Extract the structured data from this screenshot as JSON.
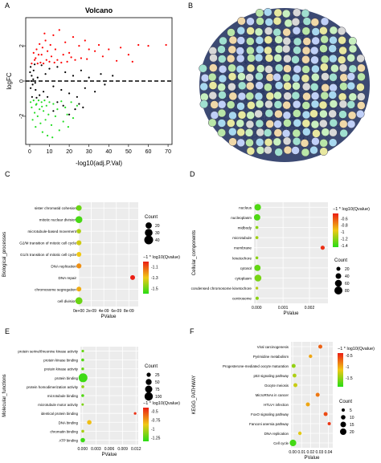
{
  "panels": {
    "a": "A",
    "b": "B",
    "c": "C",
    "d": "D",
    "e": "E",
    "f": "F"
  },
  "colors": {
    "up": "#ff0000",
    "down": "#22dd22",
    "ns": "#000000",
    "network_edge": "#1a2a5a"
  },
  "chart_data": [
    {
      "id": "A",
      "type": "scatter",
      "title": "Volcano",
      "xlabel": "-log10(adj.P.Val)",
      "ylabel": "logFC",
      "xlim": [
        -2,
        72
      ],
      "ylim": [
        -3.6,
        3.6
      ],
      "xticks": [
        0,
        10,
        20,
        30,
        40,
        50,
        60,
        70
      ],
      "yticks": [
        -2,
        0,
        2
      ],
      "series": [
        {
          "color": "up",
          "points": [
            [
              69,
              2.05
            ],
            [
              60,
              2.0
            ],
            [
              55,
              2.05
            ],
            [
              46,
              1.9
            ],
            [
              40,
              1.8
            ],
            [
              35,
              2.05
            ],
            [
              33,
              1.7
            ],
            [
              30,
              1.8
            ],
            [
              28,
              2.3
            ],
            [
              25,
              2.0
            ],
            [
              22,
              2.5
            ],
            [
              20,
              1.6
            ],
            [
              18,
              2.2
            ],
            [
              17,
              1.5
            ],
            [
              15,
              2.9
            ],
            [
              14,
              1.2
            ],
            [
              13,
              1.8
            ],
            [
              12,
              2.6
            ],
            [
              10,
              1.1
            ],
            [
              9,
              1.7
            ],
            [
              8,
              2.3
            ],
            [
              7,
              1.0
            ],
            [
              6,
              1.5
            ],
            [
              5,
              2.1
            ],
            [
              4,
              1.0
            ],
            [
              3,
              1.3
            ],
            [
              2,
              1.6
            ],
            [
              1,
              1.0
            ],
            [
              26,
              1.3
            ],
            [
              19,
              1.1
            ],
            [
              11,
              1.4
            ],
            [
              16,
              1.05
            ],
            [
              23,
              1.2
            ],
            [
              8.5,
              1.2
            ],
            [
              6.5,
              1.9
            ],
            [
              4.5,
              1.5
            ],
            [
              2.5,
              1.2
            ],
            [
              3.5,
              1.8
            ],
            [
              5.5,
              1.05
            ],
            [
              12.5,
              1.05
            ],
            [
              21,
              1.35
            ],
            [
              29,
              1.25
            ],
            [
              37,
              1.4
            ],
            [
              44,
              1.15
            ],
            [
              50,
              1.5
            ],
            [
              52,
              1.1
            ],
            [
              7.5,
              2.7
            ],
            [
              10.5,
              2.05
            ]
          ]
        },
        {
          "color": "ns",
          "points": [
            [
              0.2,
              0.5
            ],
            [
              0.5,
              -0.4
            ],
            [
              1,
              0.3
            ],
            [
              1.5,
              -0.2
            ],
            [
              2,
              0.6
            ],
            [
              3,
              -0.5
            ],
            [
              4,
              0.2
            ],
            [
              5,
              -0.8
            ],
            [
              6,
              0.9
            ],
            [
              7,
              -0.6
            ],
            [
              8,
              0.4
            ],
            [
              9,
              -0.9
            ],
            [
              10,
              0.7
            ],
            [
              12,
              -0.3
            ],
            [
              14,
              0.8
            ],
            [
              16,
              -0.5
            ],
            [
              18,
              0.5
            ],
            [
              20,
              -0.7
            ],
            [
              22,
              0.3
            ],
            [
              24,
              -0.9
            ],
            [
              26,
              0.6
            ],
            [
              28,
              -0.4
            ],
            [
              30,
              0.2
            ],
            [
              33,
              -0.6
            ],
            [
              36,
              0.4
            ],
            [
              38,
              -0.2
            ],
            [
              42,
              0.3
            ],
            [
              25,
              -1.3
            ],
            [
              23,
              -1.6
            ],
            [
              20,
              -1.9
            ],
            [
              17,
              -1.4
            ],
            [
              14,
              -1.2
            ],
            [
              12,
              -1.7
            ],
            [
              27,
              -1.5
            ],
            [
              0.5,
              0.8
            ],
            [
              1.2,
              -0.9
            ],
            [
              2.5,
              0.95
            ],
            [
              3.5,
              -0.95
            ],
            [
              0.8,
              0.0
            ],
            [
              1.8,
              0.1
            ],
            [
              2.8,
              -0.1
            ]
          ]
        },
        {
          "color": "down",
          "points": [
            [
              0.5,
              -1.2
            ],
            [
              1,
              -1.5
            ],
            [
              1.5,
              -2.2
            ],
            [
              2,
              -1.1
            ],
            [
              2.5,
              -1.8
            ],
            [
              3,
              -2.6
            ],
            [
              3.5,
              -1.3
            ],
            [
              4,
              -2.0
            ],
            [
              4.5,
              -1.1
            ],
            [
              5,
              -1.6
            ],
            [
              5.5,
              -2.4
            ],
            [
              6,
              -1.2
            ],
            [
              6.5,
              -2.9
            ],
            [
              7,
              -1.7
            ],
            [
              7.5,
              -1.1
            ],
            [
              8,
              -2.2
            ],
            [
              8.5,
              -1.4
            ],
            [
              9,
              -3.1
            ],
            [
              9.5,
              -1.9
            ],
            [
              10,
              -1.2
            ],
            [
              11,
              -2.5
            ],
            [
              12,
              -1.3
            ],
            [
              13,
              -2.0
            ],
            [
              14,
              -1.6
            ],
            [
              15,
              -2.8
            ],
            [
              16,
              -1.15
            ],
            [
              17,
              -2.3
            ],
            [
              18,
              -1.5
            ],
            [
              19,
              -1.9
            ],
            [
              21,
              -1.2
            ],
            [
              22,
              -2.1
            ],
            [
              24,
              -1.4
            ],
            [
              19.5,
              -2.6
            ],
            [
              11.5,
              -3.2
            ],
            [
              6.2,
              -1.45
            ],
            [
              3.2,
              -1.35
            ]
          ]
        }
      ]
    },
    {
      "id": "C",
      "type": "scatter",
      "xlabel": "PValue",
      "ylabel": "Biological_processes",
      "xlim": [
        0,
        9.5e-09
      ],
      "xticks": [
        0,
        2e-09,
        4e-09,
        6e-09,
        8e-09
      ],
      "xticklabels": [
        "0e+00",
        "2e-09",
        "4e-09",
        "6e-09",
        "8e-09"
      ],
      "categories": [
        "sister chromatid cohesion",
        "mitotic nuclear division",
        "microtubule-based movement",
        "G2/M transition of mitotic cell cycle",
        "G1/S transition of mitotic cell cycle",
        "DNA replication",
        "DNA repair",
        "chromosome segregation",
        "cell division"
      ],
      "points": [
        {
          "category": "sister chromatid cohesion",
          "x": 1e-11,
          "count": 16,
          "q": -1.5
        },
        {
          "category": "mitotic nuclear division",
          "x": 2e-11,
          "count": 24,
          "q": -1.55
        },
        {
          "category": "microtubule-based movement",
          "x": 1e-11,
          "count": 10,
          "q": -1.4
        },
        {
          "category": "G2/M transition of mitotic cell cycle",
          "x": 2e-11,
          "count": 13,
          "q": -1.35
        },
        {
          "category": "G1/S transition of mitotic cell cycle",
          "x": 2e-11,
          "count": 12,
          "q": -1.3
        },
        {
          "category": "DNA replication",
          "x": 3e-11,
          "count": 13,
          "q": -1.2
        },
        {
          "category": "DNA repair",
          "x": 8.6e-09,
          "count": 12,
          "q": -1.0
        },
        {
          "category": "chromosome segregation",
          "x": 2e-11,
          "count": 12,
          "q": -1.25
        },
        {
          "category": "cell division",
          "x": 3e-11,
          "count": 26,
          "q": -1.5
        }
      ],
      "size_legend": {
        "title": "Count",
        "values": [
          20,
          30,
          40
        ]
      },
      "color_legend": {
        "title": "−1 * log10(Qvalue)",
        "ticks": [
          -1.1,
          -1.3,
          -1.5
        ],
        "range": [
          -1.6,
          -1.0
        ]
      }
    },
    {
      "id": "D",
      "type": "scatter",
      "xlabel": "PValue",
      "ylabel": "Cellular_components",
      "xlim": [
        -0.0001,
        0.0027
      ],
      "xticks": [
        0,
        0.001,
        0.002
      ],
      "xticklabels": [
        "0.000",
        "0.001",
        "0.002"
      ],
      "categories": [
        "nucleus",
        "nucleoplasm",
        "midbody",
        "microtubule",
        "membrane",
        "kinetochore",
        "cytosol",
        "cytoplasm",
        "condensed chromosome kinetochore",
        "centrosome"
      ],
      "points": [
        {
          "category": "nucleus",
          "x": 4e-05,
          "count": 55,
          "q": -1.35
        },
        {
          "category": "nucleoplasm",
          "x": 2e-05,
          "count": 52,
          "q": -1.35
        },
        {
          "category": "midbody",
          "x": 1e-05,
          "count": 12,
          "q": -1.2
        },
        {
          "category": "microtubule",
          "x": 1e-05,
          "count": 12,
          "q": -1.15
        },
        {
          "category": "membrane",
          "x": 0.0025,
          "count": 22,
          "q": -0.5
        },
        {
          "category": "kinetochore",
          "x": 1e-05,
          "count": 10,
          "q": -1.2
        },
        {
          "category": "cytosol",
          "x": 3e-05,
          "count": 48,
          "q": -1.3
        },
        {
          "category": "cytoplasm",
          "x": 5e-05,
          "count": 60,
          "q": -1.25
        },
        {
          "category": "condensed chromosome kinetochore",
          "x": 1e-05,
          "count": 9,
          "q": -1.1
        },
        {
          "category": "centrosome",
          "x": 2e-05,
          "count": 14,
          "q": -1.2
        }
      ],
      "size_legend": {
        "title": "Count",
        "values": [
          20,
          40,
          60,
          80
        ]
      },
      "color_legend": {
        "title": "−1 * log10(Qvalue)",
        "ticks": [
          -0.6,
          -0.8,
          -1.0,
          -1.2,
          -1.4
        ],
        "range": [
          -1.45,
          -0.45
        ]
      }
    },
    {
      "id": "E",
      "type": "scatter",
      "xlabel": "PValue",
      "ylabel": "Molecular_functions",
      "xlim": [
        -0.0005,
        0.0125
      ],
      "xticks": [
        0,
        0.003,
        0.006,
        0.009,
        0.012
      ],
      "xticklabels": [
        "0.000",
        "0.003",
        "0.006",
        "0.009",
        "0.012"
      ],
      "categories": [
        "protein serine/threonine kinase activity",
        "protein kinase binding",
        "protein kinase activity",
        "protein binding",
        "protein homodimerization activity",
        "microtubule binding",
        "microtubule motor activity",
        "identical protein binding",
        "DNA binding",
        "chromatin binding",
        "ATP binding"
      ],
      "points": [
        {
          "category": "protein serine/threonine kinase activity",
          "x": 5e-05,
          "count": 10,
          "q": -1.2
        },
        {
          "category": "protein kinase binding",
          "x": 3e-05,
          "count": 12,
          "q": -1.25
        },
        {
          "category": "protein kinase activity",
          "x": 3e-05,
          "count": 11,
          "q": -1.2
        },
        {
          "category": "protein binding",
          "x": 0.0001,
          "count": 110,
          "q": -1.3
        },
        {
          "category": "protein homodimerization activity",
          "x": 5e-05,
          "count": 12,
          "q": -1.1
        },
        {
          "category": "microtubule binding",
          "x": 2e-05,
          "count": 12,
          "q": -1.25
        },
        {
          "category": "microtubule motor activity",
          "x": 1e-05,
          "count": 8,
          "q": -1.15
        },
        {
          "category": "identical protein binding",
          "x": 0.0118,
          "count": 10,
          "q": -0.45
        },
        {
          "category": "DNA binding",
          "x": 0.0015,
          "count": 30,
          "q": -0.85
        },
        {
          "category": "chromatin binding",
          "x": 5e-05,
          "count": 12,
          "q": -1.05
        },
        {
          "category": "ATP binding",
          "x": 4e-05,
          "count": 28,
          "q": -1.3
        }
      ],
      "size_legend": {
        "title": "Count",
        "values": [
          25,
          50,
          75,
          100
        ]
      },
      "color_legend": {
        "title": "−1 * log10(Qvalue)",
        "ticks": [
          -0.5,
          -0.75,
          -1.0,
          -1.25
        ],
        "range": [
          -1.35,
          -0.4
        ]
      }
    },
    {
      "id": "F",
      "type": "scatter",
      "xlabel": "PValue",
      "ylabel": "KEGG_PATHWAY",
      "xlim": [
        -0.002,
        0.045
      ],
      "xticks": [
        0,
        0.01,
        0.02,
        0.03,
        0.04
      ],
      "xticklabels": [
        "0.00",
        "0.01",
        "0.02",
        "0.03",
        "0.04"
      ],
      "categories": [
        "Viral carcinogenesis",
        "Pyrimidine metabolism",
        "Progesterone-mediated oocyte maturation",
        "p53 signaling pathway",
        "Oocyte meiosis",
        "MicroRNAs in cancer",
        "HTLV-I infection",
        "FoxO signaling pathway",
        "Fanconi anemia pathway",
        "DNA replication",
        "Cell cycle"
      ],
      "points": [
        {
          "category": "Viral carcinogenesis",
          "x": 0.031,
          "count": 8,
          "q": -0.7
        },
        {
          "category": "Pyrimidine metabolism",
          "x": 0.02,
          "count": 6,
          "q": -1.0
        },
        {
          "category": "Progesterone-mediated oocyte maturation",
          "x": 0.001,
          "count": 8,
          "q": -1.5
        },
        {
          "category": "p53 signaling pathway",
          "x": 0.002,
          "count": 7,
          "q": -1.4
        },
        {
          "category": "Oocyte meiosis",
          "x": 0.003,
          "count": 8,
          "q": -1.3
        },
        {
          "category": "MicroRNAs in cancer",
          "x": 0.028,
          "count": 8,
          "q": -0.8
        },
        {
          "category": "HTLV-I infection",
          "x": 0.017,
          "count": 8,
          "q": -1.0
        },
        {
          "category": "FoxO signaling pathway",
          "x": 0.037,
          "count": 8,
          "q": -0.6
        },
        {
          "category": "Fanconi anemia pathway",
          "x": 0.041,
          "count": 5,
          "q": -0.5
        },
        {
          "category": "DNA replication",
          "x": 0.008,
          "count": 6,
          "q": -1.2
        },
        {
          "category": "Cell cycle",
          "x": 0.0003,
          "count": 21,
          "q": -1.8
        }
      ],
      "size_legend": {
        "title": "Count",
        "values": [
          5,
          10,
          15,
          20
        ]
      },
      "color_legend": {
        "title": "−1 * log10(Qvalue)",
        "ticks": [
          -0.5,
          -1.0,
          -1.5
        ],
        "range": [
          -1.9,
          -0.4
        ]
      }
    }
  ]
}
